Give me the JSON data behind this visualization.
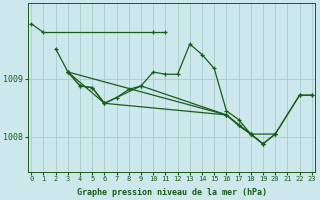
{
  "title": "Graphe pression niveau de la mer (hPa)",
  "bg_color": "#cce8ec",
  "grid_color": "#aacccc",
  "line_color": "#1a5c1a",
  "x_labels": [
    "0",
    "1",
    "2",
    "3",
    "4",
    "5",
    "6",
    "7",
    "8",
    "9",
    "10",
    "11",
    "12",
    "13",
    "14",
    "15",
    "16",
    "17",
    "18",
    "19",
    "20",
    "21",
    "22",
    "23"
  ],
  "yticks": [
    1008,
    1009
  ],
  "ylim": [
    1007.4,
    1010.3
  ],
  "xlim": [
    -0.3,
    23.3
  ],
  "series": [
    [
      [
        0,
        1009.95
      ],
      [
        1,
        1009.8
      ],
      [
        10,
        1009.78
      ],
      [
        11,
        1009.78
      ]
    ],
    [
      [
        2,
        1009.52
      ],
      [
        3,
        1009.1
      ],
      [
        4,
        1008.87
      ],
      [
        5,
        1008.87
      ],
      [
        6,
        1008.58
      ],
      [
        7,
        1008.68
      ],
      [
        8,
        1008.82
      ],
      [
        9,
        1008.87
      ]
    ],
    [
      [
        11,
        1009.05
      ],
      [
        12,
        1009.05
      ]
    ],
    [
      [
        13,
        1009.58
      ],
      [
        14,
        1009.38
      ],
      [
        15,
        1009.15
      ],
      [
        16,
        1008.45
      ],
      [
        17,
        1008.28
      ],
      [
        18,
        1008.0
      ],
      [
        19,
        1007.82
      ],
      [
        20,
        1008.0
      ]
    ],
    [
      [
        22,
        1008.88
      ],
      [
        23,
        1008.88
      ]
    ],
    [
      [
        3,
        1009.1
      ],
      [
        16,
        1008.38
      ],
      [
        17,
        1008.18
      ],
      [
        18,
        1008.0
      ],
      [
        19,
        1007.82
      ]
    ],
    [
      [
        19,
        1007.82
      ],
      [
        20,
        1008.0
      ],
      [
        22,
        1008.68
      ],
      [
        23,
        1008.88
      ]
    ],
    [
      [
        3,
        1009.1
      ],
      [
        4,
        1008.87
      ],
      [
        5,
        1008.87
      ],
      [
        6,
        1008.58
      ]
    ],
    [
      [
        3,
        1009.1
      ],
      [
        7,
        1008.68
      ],
      [
        8,
        1008.82
      ],
      [
        9,
        1008.87
      ],
      [
        10,
        1009.78
      ],
      [
        11,
        1009.05
      ],
      [
        12,
        1009.05
      ],
      [
        13,
        1009.58
      ],
      [
        14,
        1009.38
      ],
      [
        15,
        1009.15
      ],
      [
        16,
        1008.45
      ],
      [
        17,
        1008.28
      ],
      [
        18,
        1008.0
      ],
      [
        19,
        1007.82
      ],
      [
        20,
        1008.0
      ],
      [
        22,
        1008.68
      ],
      [
        23,
        1008.88
      ]
    ]
  ],
  "top_series": [
    [
      0,
      1009.95
    ],
    [
      1,
      1009.8
    ],
    [
      10,
      1009.78
    ],
    [
      11,
      1009.78
    ]
  ],
  "segments": [
    {
      "points": [
        [
          0,
          1009.95
        ],
        [
          1,
          1009.8
        ],
        [
          10,
          1009.78
        ],
        [
          11,
          1009.78
        ]
      ],
      "connected": true
    },
    {
      "points": [
        [
          2,
          1009.52
        ],
        [
          3,
          1009.1
        ],
        [
          4,
          1008.87
        ],
        [
          5,
          1008.87
        ],
        [
          6,
          1008.58
        ],
        [
          7,
          1008.68
        ],
        [
          8,
          1008.82
        ],
        [
          9,
          1008.87
        ],
        [
          10,
          1009.78
        ],
        [
          11,
          1009.05
        ],
        [
          12,
          1009.05
        ],
        [
          13,
          1009.58
        ],
        [
          14,
          1009.38
        ],
        [
          15,
          1009.15
        ],
        [
          16,
          1008.45
        ],
        [
          17,
          1008.28
        ],
        [
          18,
          1008.0
        ],
        [
          19,
          1007.82
        ],
        [
          20,
          1008.0
        ],
        [
          22,
          1008.68
        ],
        [
          23,
          1008.88
        ]
      ],
      "connected": true
    },
    {
      "points": [
        [
          3,
          1009.1
        ],
        [
          16,
          1008.38
        ],
        [
          17,
          1008.18
        ],
        [
          18,
          1008.0
        ],
        [
          19,
          1007.82
        ],
        [
          20,
          1008.0
        ],
        [
          22,
          1008.68
        ],
        [
          23,
          1008.88
        ]
      ],
      "connected": true
    },
    {
      "points": [
        [
          3,
          1009.1
        ],
        [
          4,
          1008.87
        ],
        [
          5,
          1008.87
        ],
        [
          6,
          1008.58
        ],
        [
          16,
          1008.38
        ],
        [
          17,
          1008.18
        ],
        [
          18,
          1008.0
        ],
        [
          19,
          1007.82
        ]
      ],
      "connected": true
    },
    {
      "points": [
        [
          3,
          1009.1
        ],
        [
          6,
          1008.58
        ],
        [
          16,
          1008.38
        ],
        [
          18,
          1008.0
        ],
        [
          20,
          1008.0
        ]
      ],
      "connected": true
    }
  ]
}
